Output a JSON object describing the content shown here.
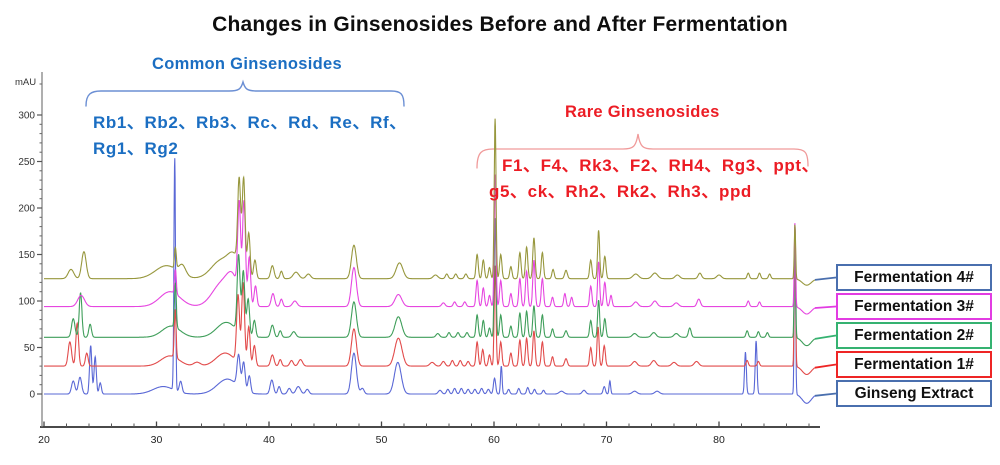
{
  "title": "Changes in Ginsenosides Before and After Fermentation",
  "annotations": {
    "common": {
      "label": "Common Ginsenosides",
      "line1": "Rb1、Rb2、Rb3、Rc、Rd、Re、Rf、",
      "line2": "Rg1、Rg2",
      "color": "#1b6ec2"
    },
    "rare": {
      "label": "Rare Ginsenosides",
      "line1": "F1、F4、Rk3、F2、RH4、Rg3、ppt、",
      "line2": "g5、ck、Rh2、Rk2、Rh3、ppd",
      "color": "#ec1c24"
    }
  },
  "legend": {
    "entries": [
      {
        "label": "Fermentation 4#",
        "color": "#4a6fae",
        "series": "Fermentation 4#"
      },
      {
        "label": "Fermentation 3#",
        "color": "#e23ce2",
        "series": "Fermentation 3#"
      },
      {
        "label": "Fermentation 2#",
        "color": "#35b271",
        "series": "Fermentation 2#"
      },
      {
        "label": "Fermentation 1#",
        "color": "#ee2525",
        "series": "Fermentation 1#"
      },
      {
        "label": "Ginseng Extract",
        "color": "#4a6fae",
        "series": "Ginseng Extract"
      }
    ]
  },
  "chart_data": {
    "type": "line",
    "title": "Changes in Ginsenosides Before and After Fermentation",
    "ylabel": "mAU",
    "xlabel": "",
    "x_ticks": [
      20,
      30,
      40,
      50,
      60,
      70,
      80
    ],
    "x_minor_step": 2,
    "x_range": [
      20,
      88.55
    ],
    "y_ticks": [
      0,
      50,
      100,
      150,
      200,
      250,
      300
    ],
    "y_minor_step": 10,
    "y_range": [
      0,
      300
    ],
    "grid": false,
    "legend_position": "right-outside",
    "series_note": "peaks are [retention_time_min, height_mAU_above_baseline, sigma_min]; traces are vertically offset by baseline_mAU",
    "series": [
      {
        "name": "Ginseng Extract",
        "color": "#5a68d6",
        "baseline": 0,
        "peaks": [
          [
            22.6,
            14,
            0.15
          ],
          [
            23.2,
            18,
            0.15
          ],
          [
            24.15,
            52,
            0.1
          ],
          [
            24.55,
            40,
            0.1
          ],
          [
            25.0,
            12,
            0.1
          ],
          [
            30.6,
            8,
            0.9
          ],
          [
            31.62,
            250,
            0.07
          ],
          [
            32.15,
            12,
            0.12
          ],
          [
            36.3,
            16,
            0.9
          ],
          [
            37.3,
            34,
            0.14
          ],
          [
            37.75,
            30,
            0.13
          ],
          [
            38.25,
            18,
            0.12
          ],
          [
            40.25,
            15,
            0.15
          ],
          [
            40.9,
            8,
            0.12
          ],
          [
            41.8,
            6,
            0.15
          ],
          [
            42.6,
            8,
            0.2
          ],
          [
            43.4,
            5,
            0.15
          ],
          [
            47.55,
            44,
            0.22
          ],
          [
            48.3,
            6,
            0.15
          ],
          [
            51.45,
            34,
            0.3
          ],
          [
            55.2,
            4,
            0.15
          ],
          [
            55.9,
            5,
            0.12
          ],
          [
            56.5,
            6,
            0.12
          ],
          [
            57.1,
            6,
            0.12
          ],
          [
            57.7,
            5,
            0.12
          ],
          [
            58.3,
            5,
            0.12
          ],
          [
            58.9,
            6,
            0.12
          ],
          [
            59.5,
            5,
            0.12
          ],
          [
            60.05,
            17,
            0.1
          ],
          [
            60.65,
            30,
            0.07
          ],
          [
            61.3,
            5,
            0.1
          ],
          [
            62.2,
            6,
            0.1
          ],
          [
            63.0,
            7,
            0.1
          ],
          [
            63.6,
            5,
            0.1
          ],
          [
            64.4,
            4,
            0.1
          ],
          [
            66.0,
            3,
            0.2
          ],
          [
            68.0,
            4,
            0.15
          ],
          [
            69.8,
            8,
            0.1
          ],
          [
            70.3,
            14,
            0.07
          ],
          [
            72.5,
            3,
            0.2
          ],
          [
            74.5,
            3,
            0.2
          ],
          [
            82.35,
            45,
            0.08
          ],
          [
            83.3,
            57,
            0.08
          ],
          [
            86.75,
            180,
            0.06
          ],
          [
            87.8,
            -10,
            0.4
          ]
        ]
      },
      {
        "name": "Fermentation 1#",
        "color": "#e24b4b",
        "baseline": 30,
        "peaks": [
          [
            22.3,
            26,
            0.15
          ],
          [
            22.95,
            46,
            0.12
          ],
          [
            23.8,
            14,
            0.12
          ],
          [
            31.2,
            11,
            0.8
          ],
          [
            31.66,
            52,
            0.08
          ],
          [
            33.6,
            4,
            0.3
          ],
          [
            36.1,
            14,
            0.8
          ],
          [
            37.25,
            72,
            0.13
          ],
          [
            37.7,
            88,
            0.13
          ],
          [
            38.2,
            42,
            0.12
          ],
          [
            38.7,
            22,
            0.12
          ],
          [
            40.3,
            12,
            0.15
          ],
          [
            41.0,
            7,
            0.12
          ],
          [
            42.0,
            6,
            0.15
          ],
          [
            42.8,
            7,
            0.18
          ],
          [
            47.55,
            40,
            0.22
          ],
          [
            51.5,
            30,
            0.32
          ],
          [
            54.5,
            4,
            0.2
          ],
          [
            55.5,
            5,
            0.15
          ],
          [
            56.3,
            6,
            0.12
          ],
          [
            57.0,
            6,
            0.12
          ],
          [
            57.7,
            5,
            0.12
          ],
          [
            58.5,
            26,
            0.1
          ],
          [
            59.0,
            18,
            0.1
          ],
          [
            59.6,
            12,
            0.1
          ],
          [
            60.1,
            108,
            0.08
          ],
          [
            60.6,
            26,
            0.1
          ],
          [
            61.5,
            14,
            0.1
          ],
          [
            62.3,
            28,
            0.1
          ],
          [
            62.9,
            30,
            0.1
          ],
          [
            63.55,
            38,
            0.1
          ],
          [
            64.3,
            26,
            0.1
          ],
          [
            65.2,
            10,
            0.1
          ],
          [
            66.4,
            8,
            0.12
          ],
          [
            68.6,
            20,
            0.1
          ],
          [
            69.25,
            42,
            0.09
          ],
          [
            69.8,
            22,
            0.1
          ],
          [
            72.5,
            5,
            0.2
          ],
          [
            74.2,
            6,
            0.2
          ],
          [
            76.0,
            4,
            0.2
          ],
          [
            78.0,
            5,
            0.2
          ],
          [
            82.5,
            6,
            0.1
          ],
          [
            83.5,
            5,
            0.1
          ],
          [
            86.75,
            150,
            0.06
          ],
          [
            87.8,
            -9,
            0.4
          ]
        ]
      },
      {
        "name": "Fermentation 2#",
        "color": "#3f9e5a",
        "baseline": 61,
        "peaks": [
          [
            22.6,
            20,
            0.15
          ],
          [
            23.25,
            48,
            0.12
          ],
          [
            24.1,
            14,
            0.12
          ],
          [
            31.3,
            12,
            0.8
          ],
          [
            31.68,
            48,
            0.08
          ],
          [
            36.2,
            16,
            0.85
          ],
          [
            37.3,
            82,
            0.13
          ],
          [
            37.72,
            68,
            0.13
          ],
          [
            38.15,
            40,
            0.12
          ],
          [
            38.7,
            18,
            0.12
          ],
          [
            40.3,
            13,
            0.15
          ],
          [
            41.0,
            7,
            0.12
          ],
          [
            42.2,
            6,
            0.18
          ],
          [
            47.55,
            38,
            0.22
          ],
          [
            51.5,
            22,
            0.3
          ],
          [
            55.0,
            4,
            0.15
          ],
          [
            56.0,
            5,
            0.12
          ],
          [
            56.8,
            5,
            0.12
          ],
          [
            57.6,
            5,
            0.12
          ],
          [
            58.5,
            24,
            0.1
          ],
          [
            59.05,
            18,
            0.1
          ],
          [
            59.6,
            10,
            0.1
          ],
          [
            60.1,
            128,
            0.08
          ],
          [
            60.6,
            24,
            0.1
          ],
          [
            61.5,
            12,
            0.1
          ],
          [
            62.3,
            26,
            0.1
          ],
          [
            62.9,
            28,
            0.1
          ],
          [
            63.55,
            34,
            0.1
          ],
          [
            64.3,
            24,
            0.1
          ],
          [
            65.2,
            9,
            0.1
          ],
          [
            66.4,
            7,
            0.12
          ],
          [
            68.6,
            18,
            0.1
          ],
          [
            69.3,
            40,
            0.09
          ],
          [
            69.85,
            20,
            0.1
          ],
          [
            72.5,
            4,
            0.2
          ],
          [
            74.2,
            5,
            0.2
          ],
          [
            76.2,
            4,
            0.2
          ],
          [
            77.4,
            10,
            0.12
          ],
          [
            82.5,
            7,
            0.1
          ],
          [
            83.5,
            6,
            0.1
          ],
          [
            84.3,
            5,
            0.1
          ],
          [
            86.75,
            122,
            0.06
          ],
          [
            87.8,
            -9,
            0.4
          ]
        ]
      },
      {
        "name": "Fermentation 3#",
        "color": "#e646e0",
        "baseline": 94,
        "peaks": [
          [
            23.3,
            12,
            0.3
          ],
          [
            31.2,
            16,
            0.9
          ],
          [
            31.68,
            26,
            0.08
          ],
          [
            35.9,
            26,
            0.9
          ],
          [
            36.8,
            20,
            0.5
          ],
          [
            37.35,
            96,
            0.13
          ],
          [
            37.78,
            108,
            0.13
          ],
          [
            38.25,
            52,
            0.12
          ],
          [
            38.8,
            22,
            0.12
          ],
          [
            40.35,
            14,
            0.15
          ],
          [
            41.1,
            8,
            0.12
          ],
          [
            42.3,
            6,
            0.2
          ],
          [
            47.55,
            42,
            0.22
          ],
          [
            51.5,
            13,
            0.3
          ],
          [
            55.5,
            4,
            0.15
          ],
          [
            56.5,
            5,
            0.12
          ],
          [
            57.4,
            5,
            0.12
          ],
          [
            58.5,
            28,
            0.1
          ],
          [
            59.05,
            20,
            0.1
          ],
          [
            59.6,
            12,
            0.1
          ],
          [
            60.1,
            142,
            0.08
          ],
          [
            60.6,
            28,
            0.1
          ],
          [
            61.5,
            14,
            0.1
          ],
          [
            62.3,
            30,
            0.1
          ],
          [
            62.9,
            38,
            0.1
          ],
          [
            63.55,
            50,
            0.1
          ],
          [
            64.3,
            30,
            0.1
          ],
          [
            65.2,
            10,
            0.1
          ],
          [
            66.3,
            14,
            0.1
          ],
          [
            66.9,
            10,
            0.1
          ],
          [
            68.6,
            22,
            0.1
          ],
          [
            69.3,
            48,
            0.09
          ],
          [
            69.85,
            26,
            0.1
          ],
          [
            70.4,
            12,
            0.1
          ],
          [
            72.6,
            5,
            0.2
          ],
          [
            74.3,
            6,
            0.2
          ],
          [
            76.2,
            4,
            0.2
          ],
          [
            78.2,
            8,
            0.15
          ],
          [
            82.6,
            6,
            0.1
          ],
          [
            83.6,
            5,
            0.1
          ],
          [
            86.75,
            90,
            0.06
          ],
          [
            87.8,
            -8,
            0.4
          ]
        ]
      },
      {
        "name": "Fermentation 4#",
        "color": "#97973d",
        "baseline": 124,
        "peaks": [
          [
            22.4,
            10,
            0.25
          ],
          [
            23.55,
            29,
            0.2
          ],
          [
            30.9,
            14,
            1.0
          ],
          [
            31.68,
            22,
            0.08
          ],
          [
            32.3,
            10,
            0.3
          ],
          [
            35.8,
            20,
            0.9
          ],
          [
            36.9,
            18,
            0.5
          ],
          [
            37.35,
            92,
            0.13
          ],
          [
            37.75,
            102,
            0.13
          ],
          [
            38.2,
            48,
            0.12
          ],
          [
            38.75,
            20,
            0.12
          ],
          [
            40.3,
            14,
            0.15
          ],
          [
            41.1,
            8,
            0.12
          ],
          [
            42.4,
            7,
            0.25
          ],
          [
            43.5,
            5,
            0.2
          ],
          [
            47.55,
            36,
            0.22
          ],
          [
            51.6,
            17,
            0.3
          ],
          [
            54.8,
            4,
            0.2
          ],
          [
            55.8,
            5,
            0.12
          ],
          [
            56.6,
            5,
            0.12
          ],
          [
            57.5,
            5,
            0.12
          ],
          [
            58.5,
            26,
            0.1
          ],
          [
            59.05,
            20,
            0.1
          ],
          [
            59.6,
            12,
            0.1
          ],
          [
            60.1,
            172,
            0.08
          ],
          [
            60.6,
            26,
            0.1
          ],
          [
            61.5,
            13,
            0.1
          ],
          [
            62.3,
            28,
            0.1
          ],
          [
            62.9,
            34,
            0.1
          ],
          [
            63.55,
            44,
            0.1
          ],
          [
            64.3,
            28,
            0.1
          ],
          [
            65.25,
            10,
            0.1
          ],
          [
            66.4,
            9,
            0.12
          ],
          [
            68.6,
            20,
            0.1
          ],
          [
            69.3,
            52,
            0.09
          ],
          [
            69.85,
            24,
            0.1
          ],
          [
            72.6,
            5,
            0.25
          ],
          [
            74.3,
            6,
            0.25
          ],
          [
            76.3,
            4,
            0.2
          ],
          [
            78.3,
            6,
            0.15
          ],
          [
            80.0,
            4,
            0.2
          ],
          [
            82.6,
            6,
            0.1
          ],
          [
            83.6,
            6,
            0.1
          ],
          [
            84.5,
            5,
            0.1
          ],
          [
            86.75,
            58,
            0.06
          ],
          [
            87.8,
            -7,
            0.4
          ]
        ]
      }
    ]
  }
}
